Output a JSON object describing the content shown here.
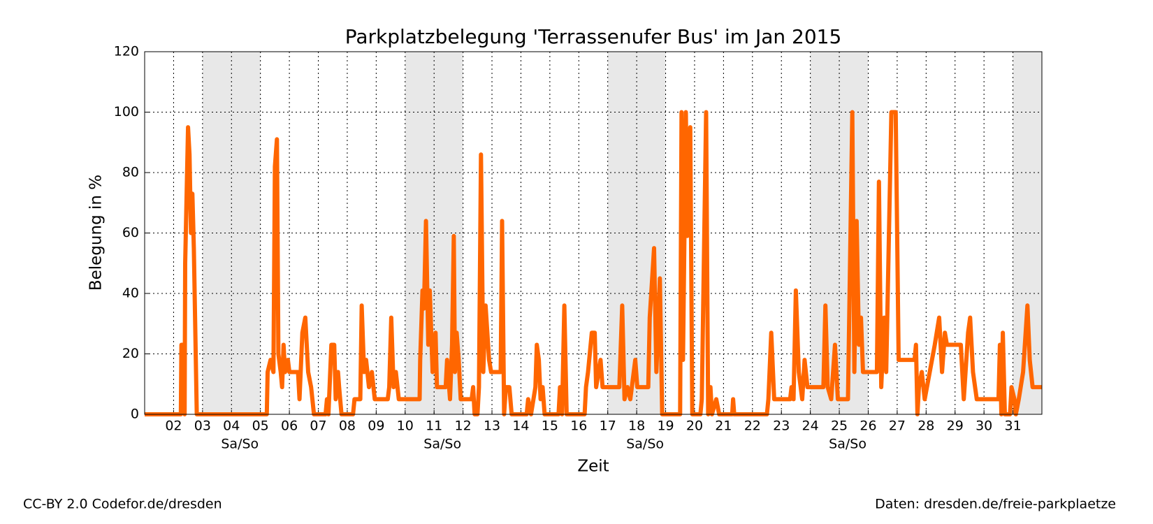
{
  "chart_data": {
    "type": "line",
    "title": "Parkplatzbelegung 'Terrassenufer Bus' im Jan 2015",
    "xlabel": "Zeit",
    "ylabel": "Belegung in %",
    "xlim": [
      1,
      32
    ],
    "ylim": [
      0,
      120
    ],
    "yticks": [
      0,
      20,
      40,
      60,
      80,
      100,
      120
    ],
    "xticks": [
      {
        "value": 2,
        "label": "02"
      },
      {
        "value": 3,
        "label": "03"
      },
      {
        "value": 4,
        "label": "04"
      },
      {
        "value": 5,
        "label": "05"
      },
      {
        "value": 6,
        "label": "06"
      },
      {
        "value": 7,
        "label": "07"
      },
      {
        "value": 8,
        "label": "08"
      },
      {
        "value": 9,
        "label": "09"
      },
      10,
      11,
      12,
      13,
      14,
      15,
      16,
      17,
      18,
      19,
      20,
      21,
      22,
      23,
      24,
      25,
      26,
      27,
      28,
      29,
      30,
      31
    ],
    "grid": true,
    "weekends": [
      {
        "start": 3,
        "end": 5,
        "label": "Sa/So"
      },
      {
        "start": 10,
        "end": 12,
        "label": "Sa/So"
      },
      {
        "start": 17,
        "end": 19,
        "label": "Sa/So"
      },
      {
        "start": 24,
        "end": 26,
        "label": "Sa/So"
      },
      {
        "start": 31,
        "end": 32
      }
    ],
    "series": [
      {
        "color": "#ff6600",
        "x": [
          1,
          2.25,
          2.27,
          2.35,
          2.38,
          2.4,
          2.5,
          2.55,
          2.6,
          2.65,
          2.7,
          2.8,
          5.22,
          5.25,
          5.35,
          5.45,
          5.5,
          5.57,
          5.62,
          5.7,
          5.75,
          5.8,
          5.85,
          5.95,
          6.0,
          6.3,
          6.35,
          6.45,
          6.55,
          6.65,
          6.75,
          6.85,
          7.25,
          7.3,
          7.35,
          7.45,
          7.55,
          7.6,
          7.68,
          7.72,
          7.8,
          8.2,
          8.25,
          8.45,
          8.5,
          8.58,
          8.65,
          8.75,
          8.85,
          8.95,
          9.4,
          9.45,
          9.52,
          9.6,
          9.68,
          9.78,
          10.5,
          10.52,
          10.6,
          10.65,
          10.72,
          10.8,
          10.85,
          10.95,
          11.05,
          11.1,
          11.4,
          11.45,
          11.55,
          11.62,
          11.68,
          11.72,
          11.78,
          11.85,
          11.92,
          12.3,
          12.35,
          12.4,
          12.5,
          12.55,
          12.62,
          12.7,
          12.78,
          12.9,
          12.97,
          13.3,
          13.35,
          13.42,
          13.48,
          13.6,
          13.68,
          14.2,
          14.25,
          14.35,
          14.5,
          14.55,
          14.62,
          14.68,
          14.75,
          14.82,
          15.3,
          15.35,
          15.42,
          15.5,
          15.58,
          16.2,
          16.25,
          16.32,
          16.45,
          16.55,
          16.6,
          16.75,
          16.82,
          17.4,
          17.5,
          17.58,
          17.68,
          17.78,
          17.95,
          18.02,
          18.4,
          18.45,
          18.6,
          18.68,
          18.8,
          18.88,
          19.5,
          19.55,
          19.6,
          19.7,
          19.75,
          19.85,
          19.92,
          20.2,
          20.25,
          20.4,
          20.47,
          20.55,
          20.6,
          20.75,
          20.85,
          21.3,
          21.33,
          21.37,
          22.5,
          22.55,
          22.65,
          22.75,
          23.3,
          23.35,
          23.42,
          23.5,
          23.6,
          23.72,
          23.8,
          23.9,
          24.45,
          24.52,
          24.6,
          24.72,
          24.85,
          24.95,
          25.3,
          25.45,
          25.52,
          25.6,
          25.68,
          25.75,
          25.82,
          26.3,
          26.37,
          26.45,
          26.55,
          26.62,
          26.8,
          26.95,
          27.05,
          27.6,
          27.65,
          27.7,
          27.75,
          27.85,
          27.95,
          28.3,
          28.45,
          28.55,
          28.65,
          28.72,
          29.2,
          29.3,
          29.45,
          29.52,
          29.62,
          29.75,
          30.5,
          30.55,
          30.6,
          30.65,
          30.72,
          30.9,
          30.95,
          31.05,
          31.1,
          31.2,
          31.35,
          31.5,
          31.58,
          31.68,
          32
        ],
        "values": [
          0,
          0,
          23,
          23,
          0,
          50,
          95,
          86,
          60,
          73,
          55,
          0,
          0,
          14,
          18,
          14,
          82,
          91,
          20,
          14,
          9,
          23,
          14,
          18,
          14,
          14,
          5,
          27,
          32,
          14,
          9,
          0,
          0,
          5,
          0,
          23,
          23,
          5,
          14,
          9,
          0,
          0,
          5,
          5,
          36,
          14,
          18,
          9,
          14,
          5,
          5,
          9,
          32,
          9,
          14,
          5,
          5,
          18,
          41,
          35,
          64,
          23,
          41,
          14,
          27,
          9,
          9,
          18,
          5,
          23,
          59,
          14,
          27,
          18,
          5,
          5,
          9,
          0,
          0,
          9,
          86,
          14,
          36,
          18,
          14,
          14,
          64,
          0,
          9,
          9,
          0,
          0,
          5,
          0,
          9,
          23,
          18,
          5,
          9,
          0,
          0,
          9,
          0,
          36,
          0,
          0,
          9,
          14,
          27,
          27,
          9,
          18,
          9,
          9,
          36,
          5,
          9,
          5,
          18,
          9,
          9,
          32,
          55,
          14,
          45,
          0,
          0,
          100,
          18,
          100,
          59,
          95,
          0,
          0,
          5,
          100,
          0,
          9,
          0,
          5,
          0,
          0,
          5,
          0,
          0,
          5,
          27,
          5,
          5,
          9,
          5,
          41,
          14,
          5,
          18,
          9,
          9,
          36,
          9,
          5,
          23,
          5,
          5,
          100,
          14,
          64,
          23,
          32,
          14,
          14,
          77,
          9,
          32,
          14,
          100,
          100,
          18,
          18,
          23,
          0,
          9,
          14,
          5,
          23,
          32,
          14,
          27,
          23,
          23,
          5,
          27,
          32,
          14,
          5,
          5,
          23,
          0,
          27,
          0,
          0,
          9,
          5,
          0,
          5,
          14,
          36,
          18,
          9,
          9
        ]
      }
    ]
  },
  "footer": {
    "left": "CC-BY 2.0 Codefor.de/dresden",
    "right": "Daten: dresden.de/freie-parkplaetze"
  }
}
